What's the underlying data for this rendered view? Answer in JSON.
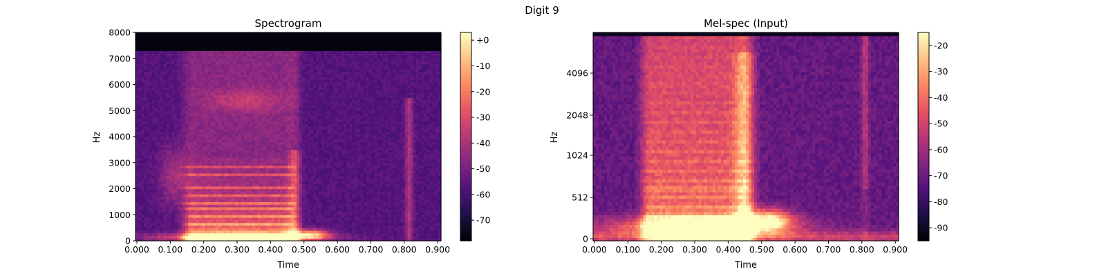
{
  "figure": {
    "suptitle": "Digit 9"
  },
  "chart_data": [
    {
      "type": "heatmap",
      "title": "Spectrogram",
      "xlabel": "Time",
      "ylabel": "Hz",
      "xlim": [
        0.0,
        0.91
      ],
      "ylim": [
        0,
        8000
      ],
      "xticks": [
        "0.000",
        "0.100",
        "0.200",
        "0.300",
        "0.400",
        "0.500",
        "0.600",
        "0.700",
        "0.800",
        "0.900"
      ],
      "yticks": [
        "0",
        "1000",
        "2000",
        "3000",
        "4000",
        "5000",
        "6000",
        "7000",
        "8000"
      ],
      "colorbar": {
        "ticks": [
          "+0",
          "-10",
          "-20",
          "-30",
          "-40",
          "-50",
          "-60",
          "-70"
        ],
        "range": [
          -78,
          3
        ]
      },
      "colormap": "magma"
    },
    {
      "type": "heatmap",
      "title": "Mel-spec (Input)",
      "xlabel": "Time",
      "ylabel": "Hz",
      "xlim": [
        0.0,
        0.91
      ],
      "yscale": "mel",
      "xticks": [
        "0.000",
        "0.100",
        "0.200",
        "0.300",
        "0.400",
        "0.500",
        "0.600",
        "0.700",
        "0.800",
        "0.900"
      ],
      "yticks": [
        "0",
        "512",
        "1024",
        "2048",
        "4096"
      ],
      "colorbar": {
        "ticks": [
          "-20",
          "-30",
          "-40",
          "-50",
          "-60",
          "-70",
          "-80",
          "-90"
        ],
        "range": [
          -95,
          -15
        ]
      },
      "colormap": "magma"
    }
  ],
  "colors": {
    "magma": [
      "#000004",
      "#1d1147",
      "#51127c",
      "#822681",
      "#b73779",
      "#e75263",
      "#fc8961",
      "#fec287",
      "#fcfdbf"
    ]
  }
}
